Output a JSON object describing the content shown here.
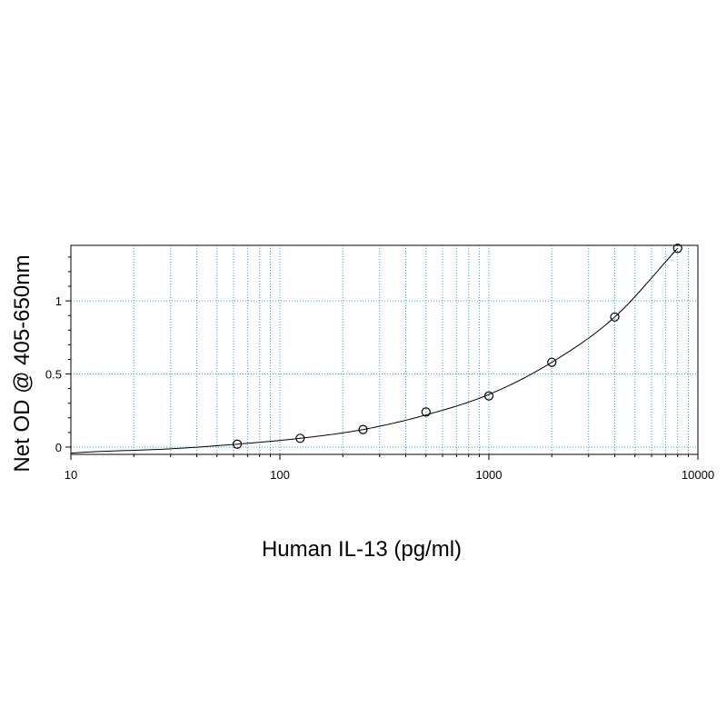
{
  "chart_data": {
    "type": "scatter",
    "title": "",
    "xlabel": "Human IL-13 (pg/ml)",
    "ylabel": "Net OD @ 405-650nm",
    "x_scale": "log",
    "xlim": [
      10,
      10000
    ],
    "ylim": [
      -0.05,
      1.38
    ],
    "x_ticks": [
      10,
      100,
      1000,
      10000
    ],
    "x_tick_labels": [
      "10",
      "100",
      "1000",
      "10000"
    ],
    "y_ticks": [
      0,
      0.5,
      1
    ],
    "y_tick_labels": [
      "0",
      "0.5",
      "1"
    ],
    "grid": true,
    "grid_color": "#29a3d6",
    "series": [
      {
        "marker": "circle",
        "x": [
          62.5,
          125,
          250,
          500,
          1000,
          2000,
          4000,
          8000
        ],
        "y": [
          0.02,
          0.06,
          0.12,
          0.24,
          0.35,
          0.58,
          0.89,
          1.36
        ]
      }
    ],
    "fit_curve": {
      "type": "line",
      "x": [
        15,
        30,
        62.5,
        125,
        250,
        500,
        1000,
        2000,
        4000,
        8000
      ],
      "y": [
        -0.028,
        -0.012,
        0.02,
        0.06,
        0.12,
        0.22,
        0.36,
        0.58,
        0.89,
        1.36
      ]
    }
  }
}
